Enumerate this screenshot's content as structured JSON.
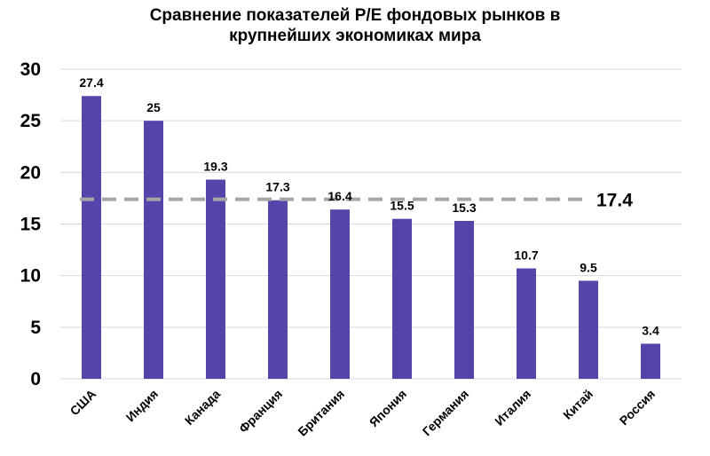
{
  "chart_data": {
    "type": "bar",
    "title_lines": [
      "Сравнение показателей P/E фондовых рынков в",
      "крупнейших экономиках мира"
    ],
    "categories": [
      "США",
      "Индия",
      "Канада",
      "Франция",
      "Британия",
      "Япония",
      "Германия",
      "Италия",
      "Китай",
      "Россия"
    ],
    "values": [
      27.4,
      25,
      19.3,
      17.3,
      16.4,
      15.5,
      15.3,
      10.7,
      9.5,
      3.4
    ],
    "value_labels": [
      "27.4",
      "25",
      "19.3",
      "17.3",
      "16.4",
      "15.5",
      "15.3",
      "10.7",
      "9.5",
      "3.4"
    ],
    "ylim": [
      0,
      30
    ],
    "yticks": [
      "0",
      "5",
      "10",
      "15",
      "20",
      "25",
      "30"
    ],
    "ytick_values": [
      0,
      5,
      10,
      15,
      20,
      25,
      30
    ],
    "reference_line": {
      "value": 17.4,
      "label": "17.4",
      "style": "dashed"
    },
    "grid": true,
    "xlabel": "",
    "ylabel": "",
    "colors": {
      "bar": "#5544A9",
      "reference": "#A6A6A6",
      "grid": "#D9D9D9"
    }
  }
}
